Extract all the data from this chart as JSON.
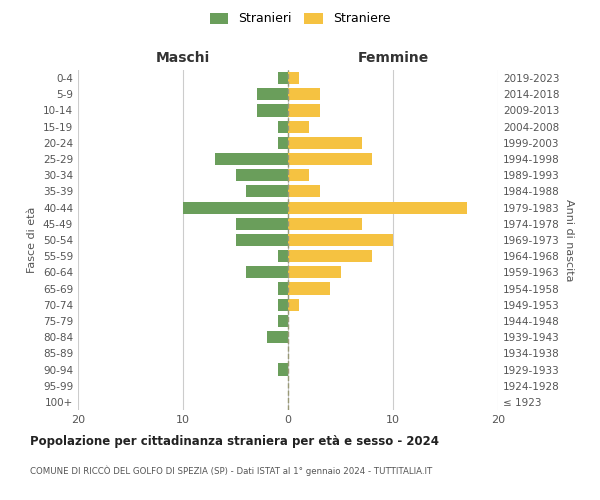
{
  "age_groups": [
    "100+",
    "95-99",
    "90-94",
    "85-89",
    "80-84",
    "75-79",
    "70-74",
    "65-69",
    "60-64",
    "55-59",
    "50-54",
    "45-49",
    "40-44",
    "35-39",
    "30-34",
    "25-29",
    "20-24",
    "15-19",
    "10-14",
    "5-9",
    "0-4"
  ],
  "birth_years": [
    "≤ 1923",
    "1924-1928",
    "1929-1933",
    "1934-1938",
    "1939-1943",
    "1944-1948",
    "1949-1953",
    "1954-1958",
    "1959-1963",
    "1964-1968",
    "1969-1973",
    "1974-1978",
    "1979-1983",
    "1984-1988",
    "1989-1993",
    "1994-1998",
    "1999-2003",
    "2004-2008",
    "2009-2013",
    "2014-2018",
    "2019-2023"
  ],
  "maschi": [
    0,
    0,
    1,
    0,
    2,
    1,
    1,
    1,
    4,
    1,
    5,
    5,
    10,
    4,
    5,
    7,
    1,
    1,
    3,
    3,
    1
  ],
  "femmine": [
    0,
    0,
    0,
    0,
    0,
    0,
    1,
    4,
    5,
    8,
    10,
    7,
    17,
    3,
    2,
    8,
    7,
    2,
    3,
    3,
    1
  ],
  "maschi_color": "#6a9e5b",
  "femmine_color": "#f5c241",
  "center_line_color": "#999977",
  "grid_color": "#cccccc",
  "background_color": "#ffffff",
  "title": "Popolazione per cittadinanza straniera per età e sesso - 2024",
  "subtitle": "COMUNE DI RICCÒ DEL GOLFO DI SPEZIA (SP) - Dati ISTAT al 1° gennaio 2024 - TUTTITALIA.IT",
  "ylabel_left": "Fasce di età",
  "ylabel_right": "Anni di nascita",
  "xlabel_left": "Maschi",
  "xlabel_right": "Femmine",
  "legend_stranieri": "Stranieri",
  "legend_straniere": "Straniere",
  "xlim": 20,
  "figsize": [
    6.0,
    5.0
  ],
  "dpi": 100
}
